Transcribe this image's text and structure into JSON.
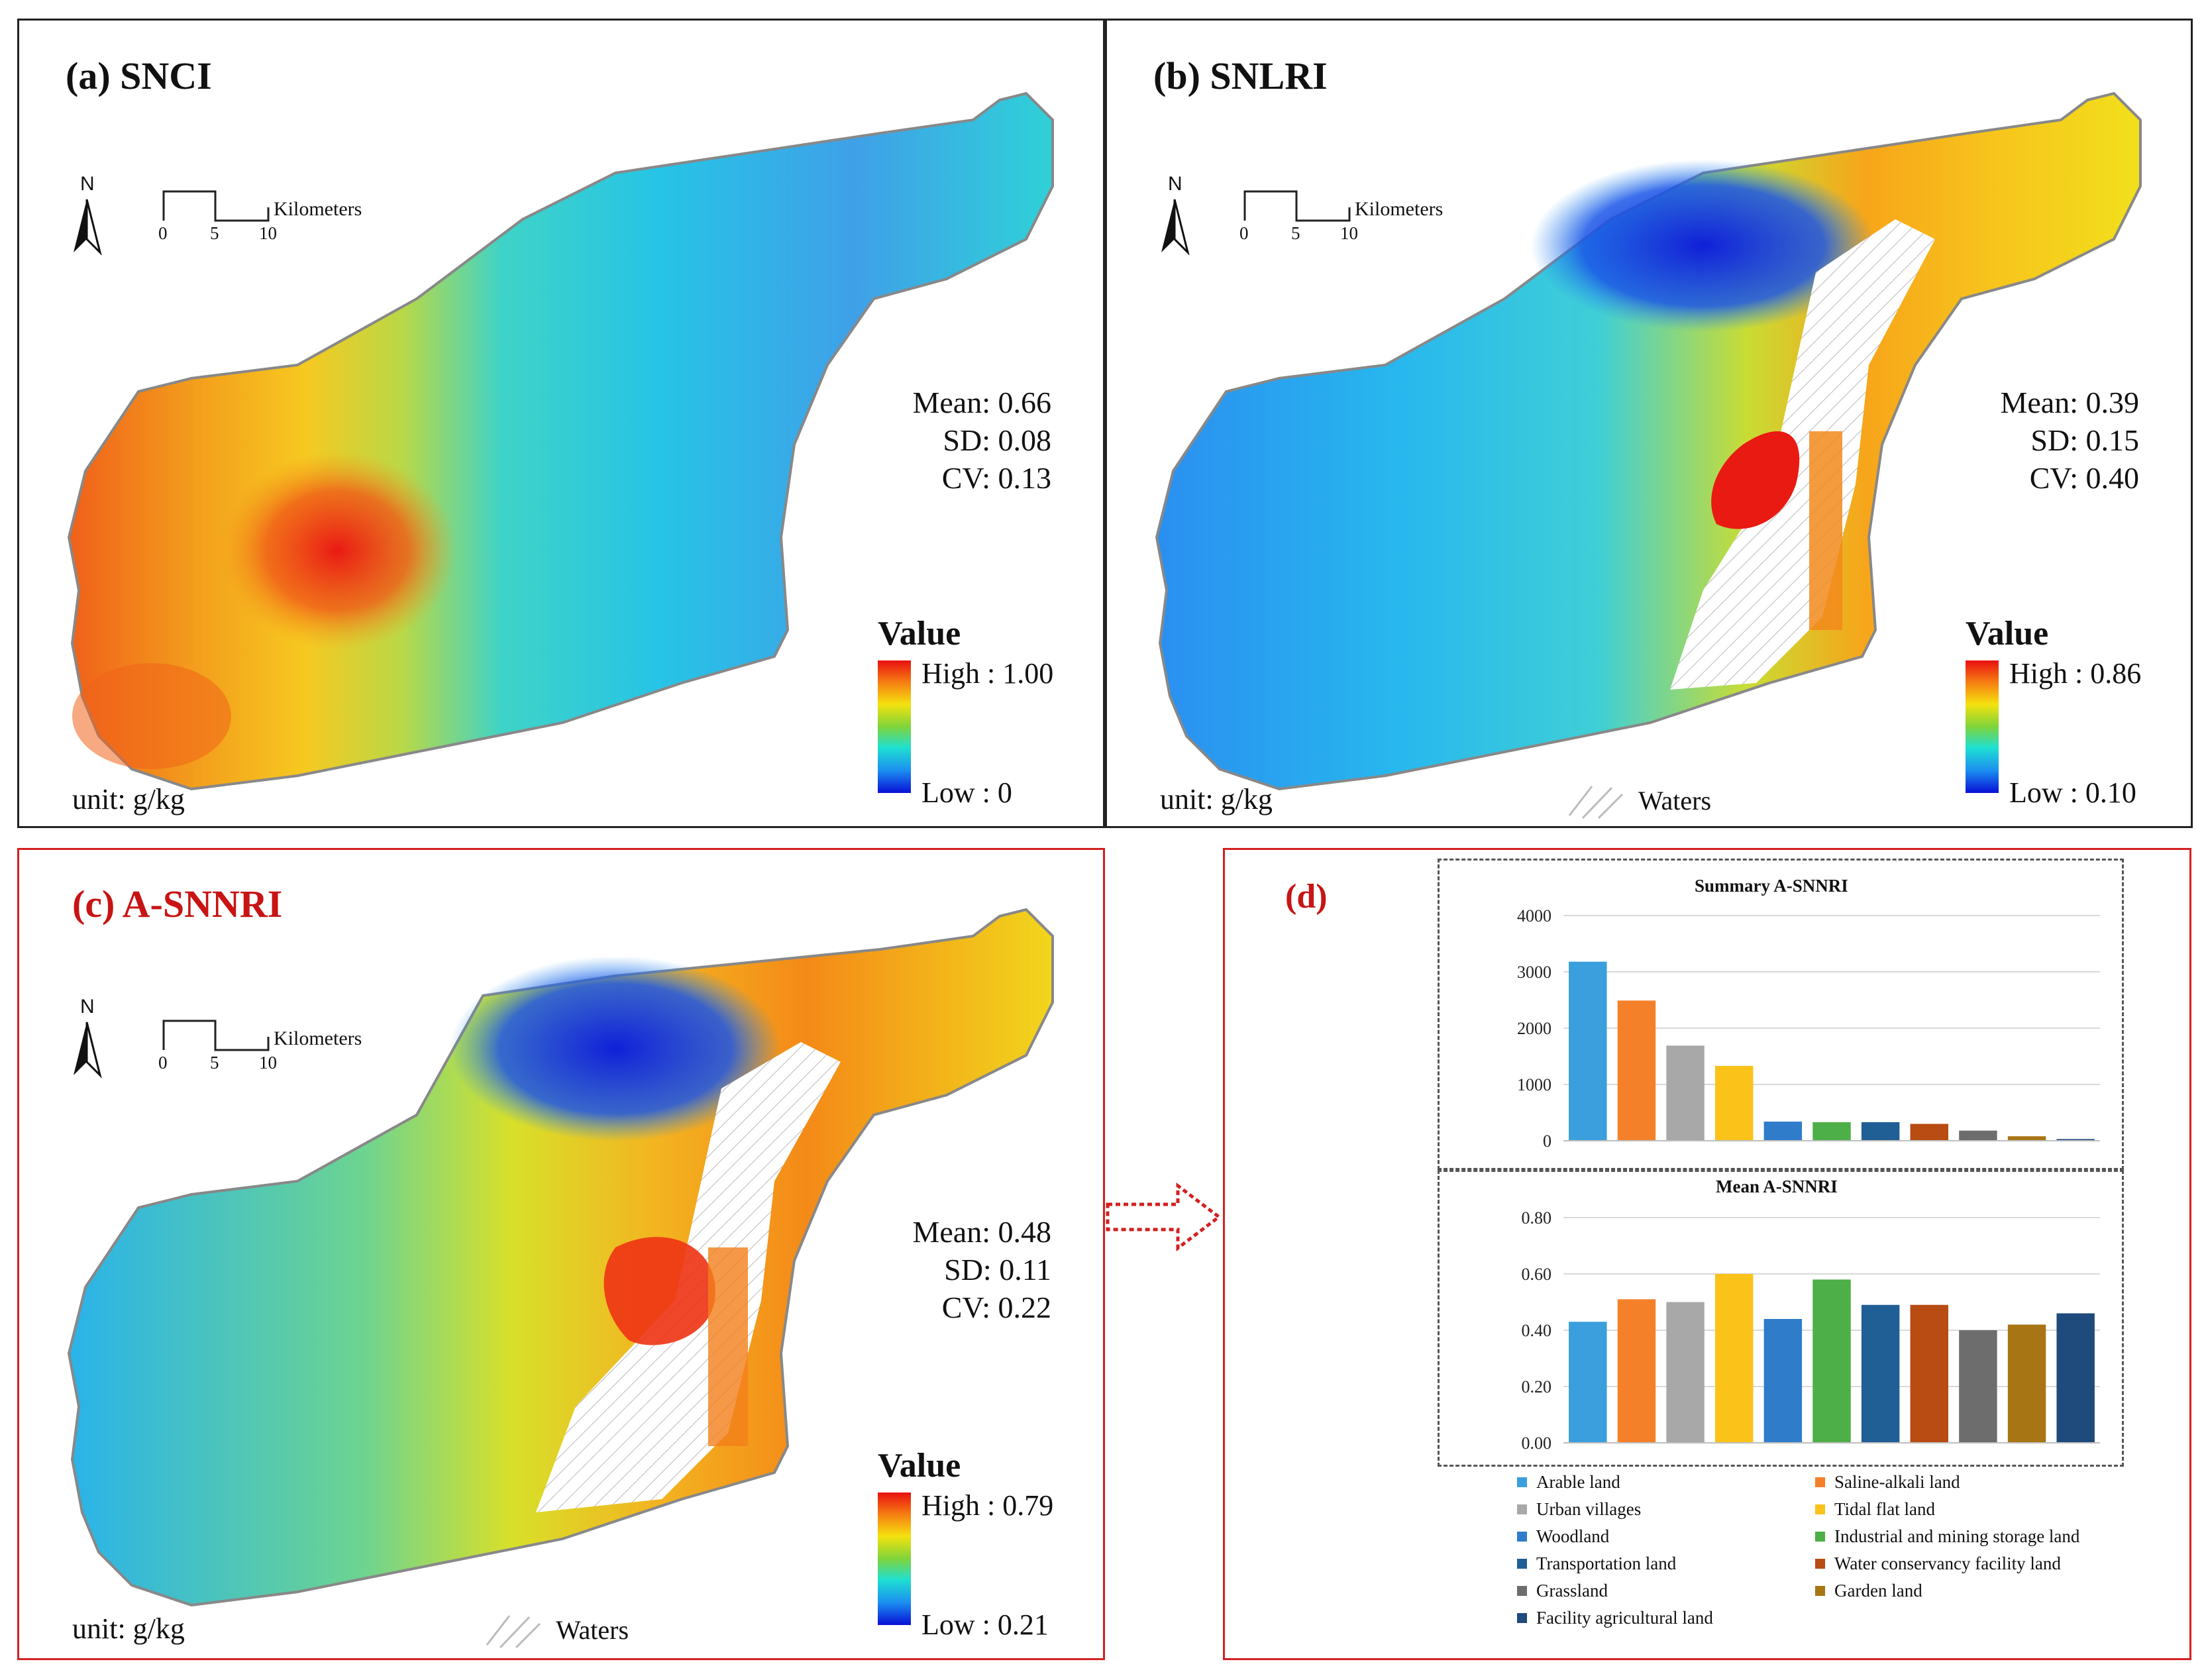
{
  "figure": {
    "panels": [
      {
        "id": "a",
        "title": "(a) SNCI",
        "stats": {
          "mean": "Mean: 0.66",
          "sd": "SD: 0.08",
          "cv": "CV: 0.13"
        },
        "legend": {
          "title": "Value",
          "high": "High : 1.00",
          "low": "Low : 0"
        },
        "unit": "unit: g/kg"
      },
      {
        "id": "b",
        "title": "(b) SNLRI",
        "stats": {
          "mean": "Mean: 0.39",
          "sd": "SD: 0.15",
          "cv": "CV: 0.40"
        },
        "legend": {
          "title": "Value",
          "high": "High : 0.86",
          "low": "Low : 0.10"
        },
        "unit": "unit: g/kg",
        "waters_label": "Waters"
      },
      {
        "id": "c",
        "title": "(c) A-SNNRI",
        "stats": {
          "mean": "Mean: 0.48",
          "sd": "SD: 0.11",
          "cv": "CV: 0.22"
        },
        "legend": {
          "title": "Value",
          "high": "High : 0.79",
          "low": "Low : 0.21"
        },
        "unit": "unit: g/kg",
        "waters_label": "Waters"
      }
    ],
    "map_common": {
      "north_label": "N",
      "scale_units": "Kilometers",
      "scale_ticks": [
        "0",
        "5",
        "10"
      ]
    },
    "panel_d_label": "(d)",
    "colors": {
      "panel_border": "#222222",
      "highlight_border": "#d42020",
      "arrow": "#d42020"
    }
  },
  "chart_data": [
    {
      "type": "bar",
      "title": "Summary A-SNNRI",
      "categories": [
        "Arable land",
        "Saline-alkali land",
        "Urban villages",
        "Tidal flat land",
        "Woodland",
        "Industrial and mining storage land",
        "Transportation land",
        "Water conservancy facility land",
        "Grassland",
        "Garden land",
        "Facility agricultural land"
      ],
      "values": [
        3180,
        2490,
        1690,
        1330,
        340,
        330,
        330,
        300,
        180,
        80,
        30
      ],
      "ylim": [
        0,
        4000
      ],
      "yticks": [
        "0",
        "1000",
        "2000",
        "3000",
        "4000"
      ],
      "colors": [
        "#3a9fdc",
        "#f5802a",
        "#a8a8a8",
        "#fbc21a",
        "#2f7ccb",
        "#4caf47",
        "#205e96",
        "#b84c12",
        "#6d6d6d",
        "#a87514",
        "#1f4a7c"
      ],
      "grid": true
    },
    {
      "type": "bar",
      "title": "Mean A-SNNRI",
      "categories": [
        "Arable land",
        "Saline-alkali land",
        "Urban villages",
        "Tidal flat land",
        "Woodland",
        "Industrial and mining storage land",
        "Transportation land",
        "Water conservancy facility land",
        "Grassland",
        "Garden land",
        "Facility agricultural land"
      ],
      "values": [
        0.43,
        0.51,
        0.5,
        0.6,
        0.44,
        0.58,
        0.49,
        0.49,
        0.4,
        0.42,
        0.46
      ],
      "ylim": [
        0,
        0.8
      ],
      "yticks": [
        "0.00",
        "0.20",
        "0.40",
        "0.60",
        "0.80"
      ],
      "colors": [
        "#3a9fdc",
        "#f5802a",
        "#a8a8a8",
        "#fbc21a",
        "#2f7ccb",
        "#4caf47",
        "#205e96",
        "#b84c12",
        "#6d6d6d",
        "#a87514",
        "#1f4a7c"
      ],
      "grid": true
    }
  ],
  "legend_d": {
    "items": [
      "Arable land",
      "Saline-alkali land",
      "Urban villages",
      "Tidal flat land",
      "Woodland",
      "Industrial and mining storage land",
      "Transportation land",
      "Water conservancy facility land",
      "Grassland",
      "Garden land",
      "Facility agricultural land"
    ],
    "colors": [
      "#3a9fdc",
      "#f5802a",
      "#a8a8a8",
      "#fbc21a",
      "#2f7ccb",
      "#4caf47",
      "#205e96",
      "#b84c12",
      "#6d6d6d",
      "#a87514",
      "#1f4a7c"
    ]
  }
}
